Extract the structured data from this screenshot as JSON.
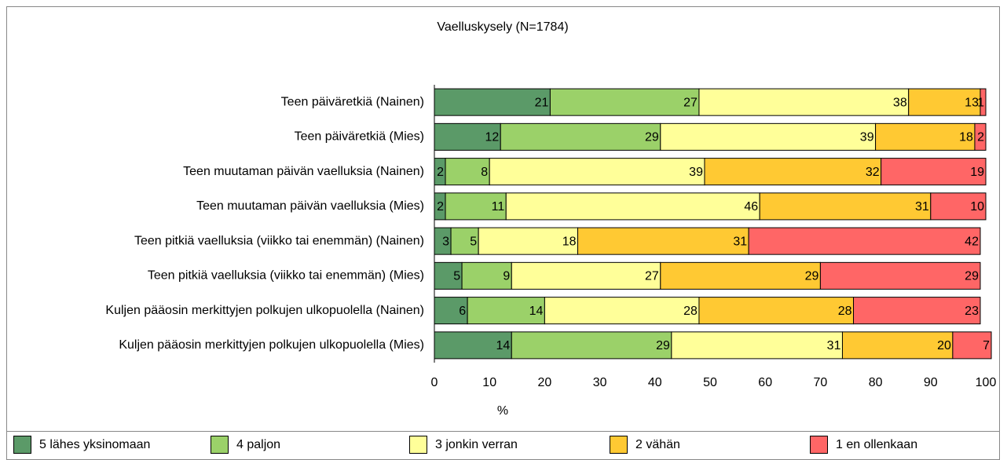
{
  "chart_data": {
    "type": "stacked_barh",
    "title": "Vaelluskysely (N=1784)",
    "categories": [
      "Teen päiväretkiä (Nainen)",
      "Teen päiväretkiä (Mies)",
      "Teen muutaman päivän vaelluksia (Nainen)",
      "Teen muutaman päivän vaelluksia (Mies)",
      "Teen pitkiä vaelluksia (viikko tai enemmän) (Nainen)",
      "Teen pitkiä vaelluksia (viikko tai enemmän) (Mies)",
      "Kuljen pääosin merkittyjen polkujen ulkopuolella (Nainen)",
      "Kuljen pääosin merkittyjen polkujen ulkopuolella (Mies)"
    ],
    "series": [
      {
        "name": "5 lähes yksinomaan",
        "color": "#5b9a68",
        "values": [
          21,
          12,
          2,
          2,
          3,
          5,
          6,
          14
        ]
      },
      {
        "name": "4 paljon",
        "color": "#9bd169",
        "values": [
          27,
          29,
          8,
          11,
          5,
          9,
          14,
          29
        ]
      },
      {
        "name": "3 jonkin verran",
        "color": "#ffff99",
        "values": [
          38,
          39,
          39,
          46,
          18,
          27,
          28,
          31
        ]
      },
      {
        "name": "2 vähän",
        "color": "#ffc933",
        "values": [
          13,
          18,
          32,
          31,
          31,
          29,
          28,
          20
        ]
      },
      {
        "name": "1 en ollenkaan",
        "color": "#ff6666",
        "values": [
          1,
          2,
          19,
          10,
          42,
          29,
          23,
          7
        ]
      }
    ],
    "xlabel": "%",
    "xlim": [
      0,
      100
    ],
    "xticks": [
      0,
      10,
      20,
      30,
      40,
      50,
      60,
      70,
      80,
      90,
      100
    ],
    "grid": false,
    "legend": "bottom"
  }
}
